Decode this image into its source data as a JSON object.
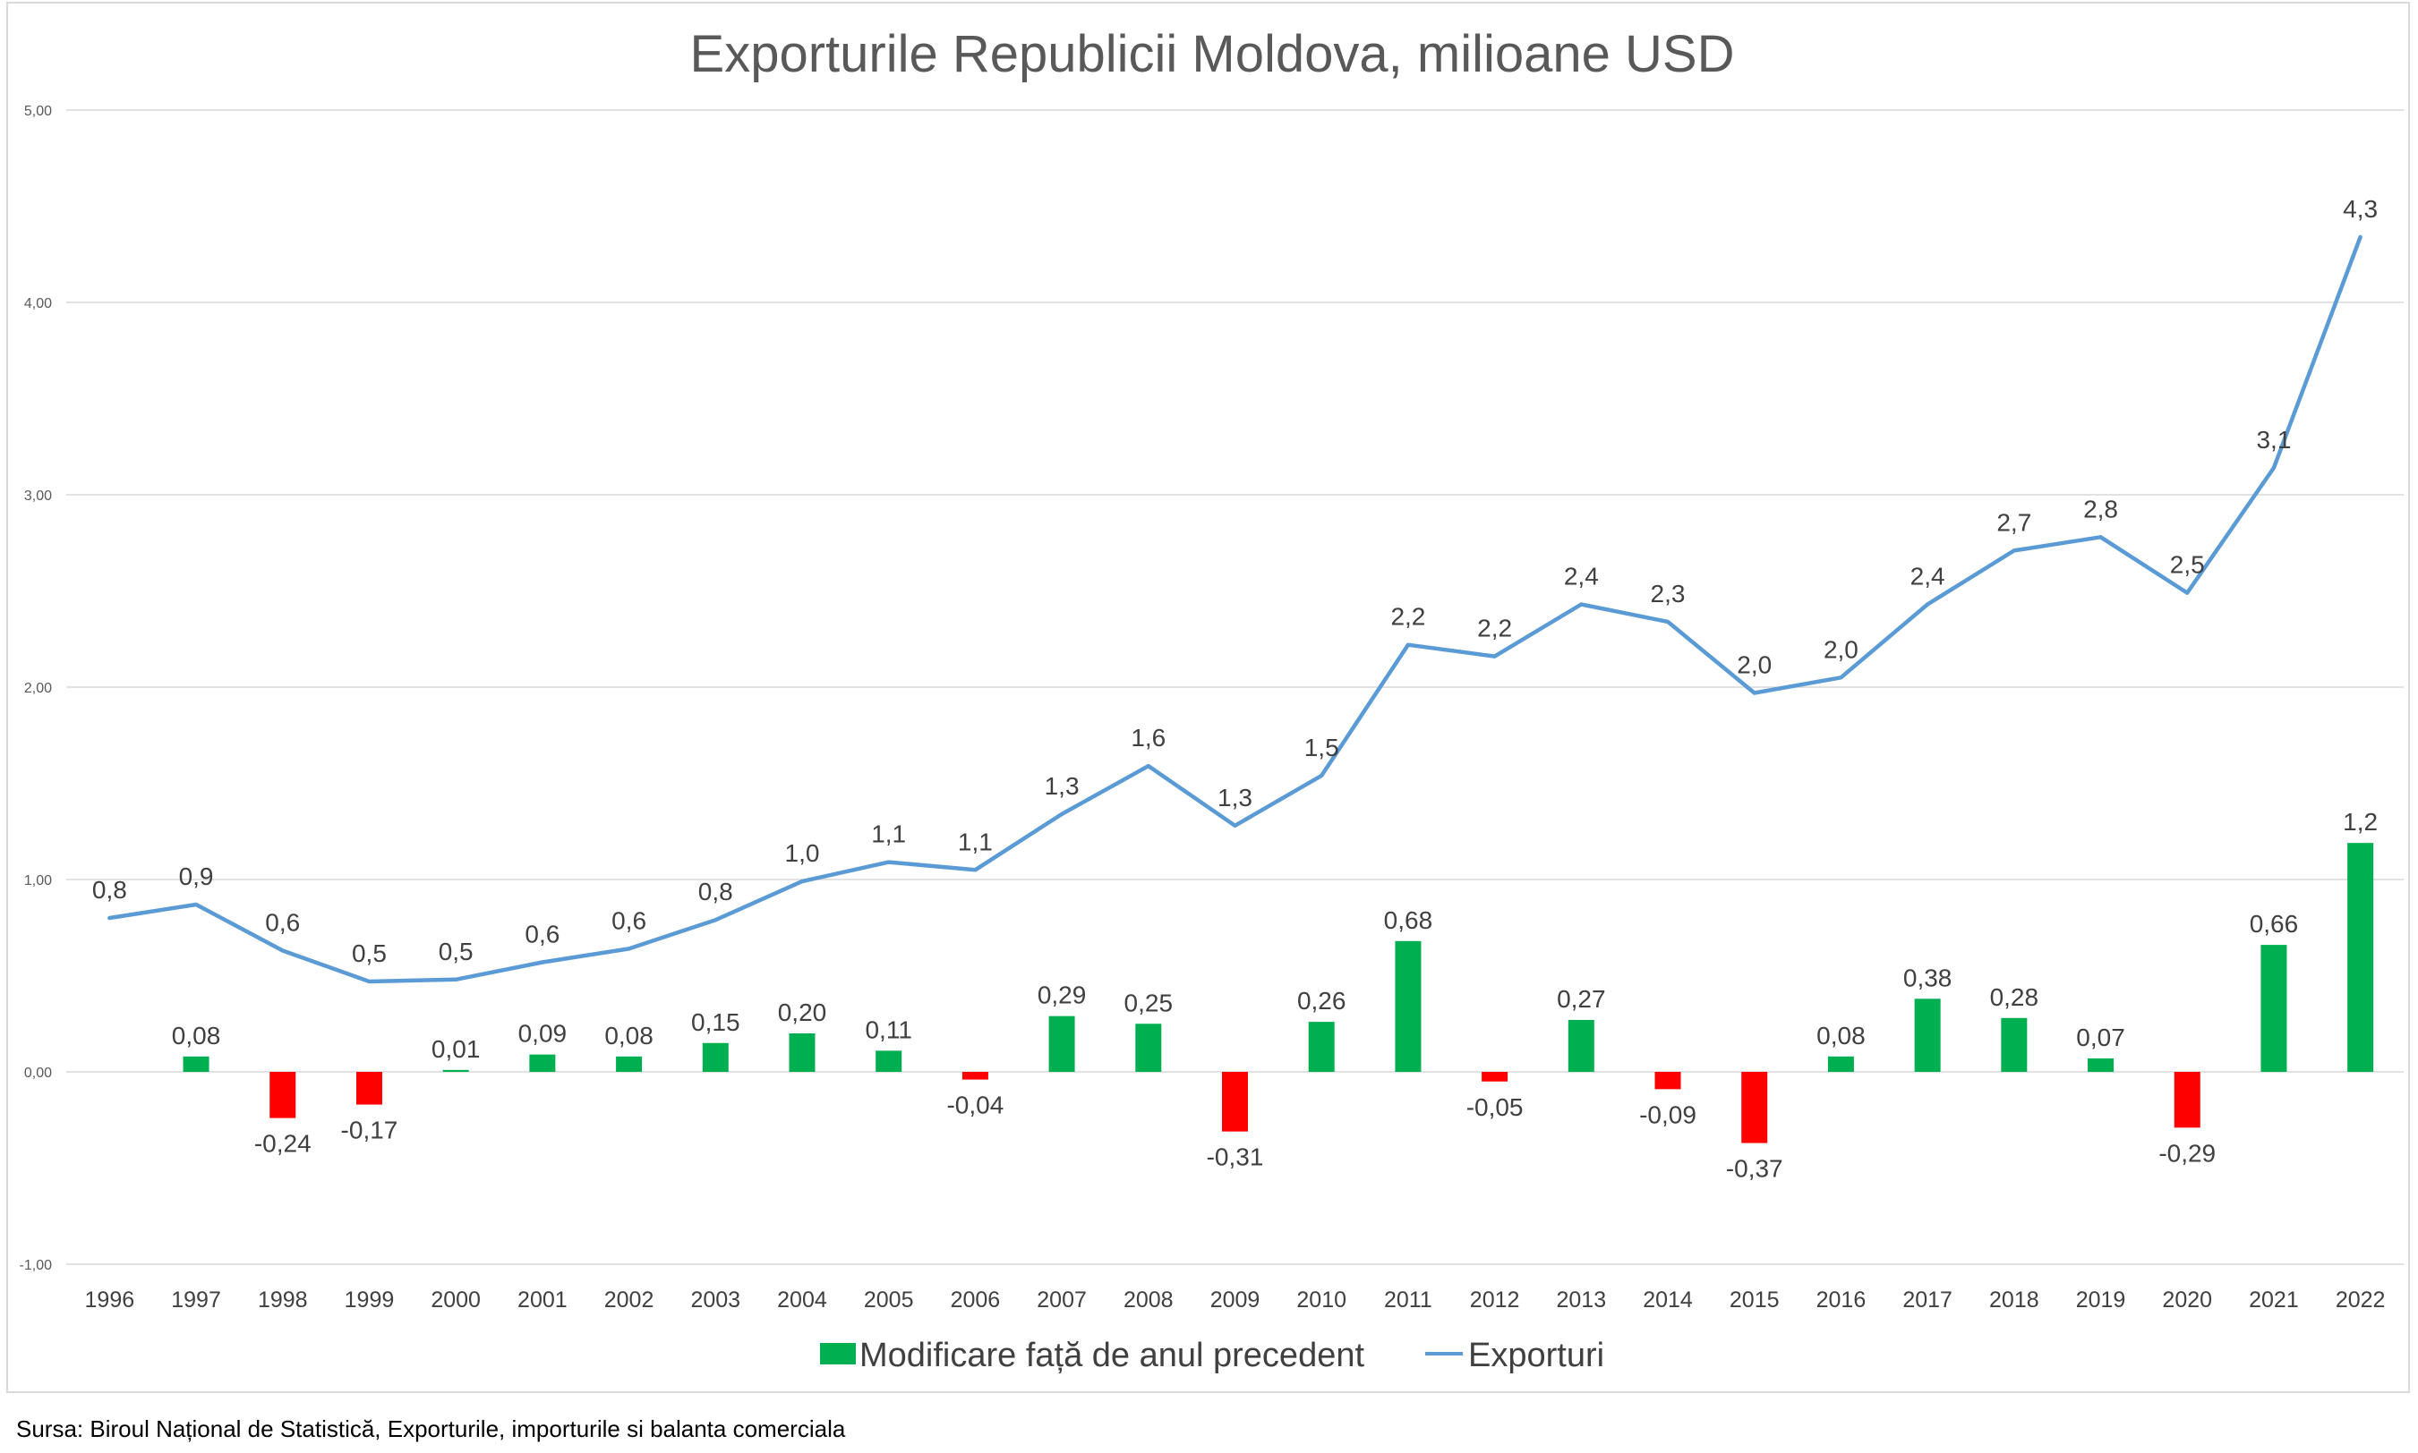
{
  "chart_data": {
    "type": "bar+line",
    "title": "Exporturile Republicii Moldova, milioane USD",
    "xlabel": "",
    "ylabel": "",
    "ylim": [
      -1,
      5
    ],
    "yticks": [
      "-1,00",
      "0,00",
      "1,00",
      "2,00",
      "3,00",
      "4,00",
      "5,00"
    ],
    "ytick_values": [
      -1,
      0,
      1,
      2,
      3,
      4,
      5
    ],
    "grid": true,
    "legend_position": "bottom",
    "categories": [
      "1996",
      "1997",
      "1998",
      "1999",
      "2000",
      "2001",
      "2002",
      "2003",
      "2004",
      "2005",
      "2006",
      "2007",
      "2008",
      "2009",
      "2010",
      "2011",
      "2012",
      "2013",
      "2014",
      "2015",
      "2016",
      "2017",
      "2018",
      "2019",
      "2020",
      "2021",
      "2022"
    ],
    "series": [
      {
        "name": "Modificare față de anul precedent",
        "kind": "bar",
        "color_positive": "#00b050",
        "color_negative": "#ff0000",
        "values": [
          null,
          0.08,
          -0.24,
          -0.17,
          0.01,
          0.09,
          0.08,
          0.15,
          0.2,
          0.11,
          -0.04,
          0.29,
          0.25,
          -0.31,
          0.26,
          0.68,
          -0.05,
          0.27,
          -0.09,
          -0.37,
          0.08,
          0.38,
          0.28,
          0.07,
          -0.29,
          0.66,
          1.19
        ],
        "labels": [
          "",
          "0,08",
          "-0,24",
          "-0,17",
          "0,01",
          "0,09",
          "0,08",
          "0,15",
          "0,20",
          "0,11",
          "-0,04",
          "0,29",
          "0,25",
          "-0,31",
          "0,26",
          "0,68",
          "-0,05",
          "0,27",
          "-0,09",
          "-0,37",
          "0,08",
          "0,38",
          "0,28",
          "0,07",
          "-0,29",
          "0,66",
          "1,2"
        ]
      },
      {
        "name": "Exporturi",
        "kind": "line",
        "color": "#5b9bd5",
        "values": [
          0.8,
          0.87,
          0.63,
          0.47,
          0.48,
          0.57,
          0.64,
          0.79,
          0.99,
          1.09,
          1.05,
          1.34,
          1.59,
          1.28,
          1.54,
          2.22,
          2.16,
          2.43,
          2.34,
          1.97,
          2.05,
          2.43,
          2.71,
          2.78,
          2.49,
          3.14,
          4.34
        ],
        "labels": [
          "0,8",
          "0,9",
          "0,6",
          "0,5",
          "0,5",
          "0,6",
          "0,6",
          "0,8",
          "1,0",
          "1,1",
          "1,1",
          "1,3",
          "1,6",
          "1,3",
          "1,5",
          "2,2",
          "2,2",
          "2,4",
          "2,3",
          "2,0",
          "2,0",
          "2,4",
          "2,7",
          "2,8",
          "2,5",
          "3,1",
          "4,3"
        ]
      }
    ]
  },
  "source_note": "Sursa: Biroul Național de Statistică, Exporturile, importurile si balanta comerciala"
}
